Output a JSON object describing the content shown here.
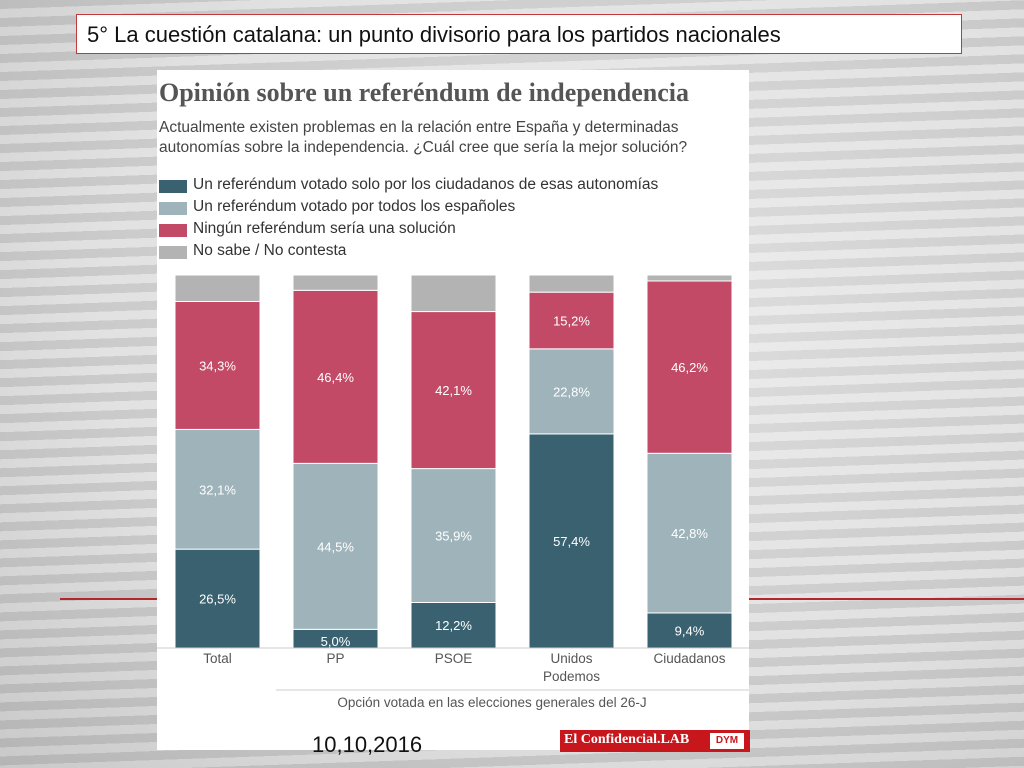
{
  "slide": {
    "title": "5° La cuestión catalana: un punto divisorio para los partidos nacionales",
    "date": "10,10,2016"
  },
  "logo": {
    "name": "El Confidencial.LAB",
    "badge": "DYM"
  },
  "colors": {
    "local_referendum": "#3a6170",
    "national_referendum": "#9fb3bb",
    "no_referendum": "#c24a66",
    "dont_know": "#b3b3b3",
    "accent_red": "#c0393b"
  },
  "chart_data": {
    "type": "bar",
    "stacked": true,
    "normalized_100": true,
    "title": "Opinión sobre un referéndum de independencia",
    "subtitle": "Actualmente existen problemas en la relación entre España y determinadas autonomías sobre la independencia. ¿Cuál cree que sería la mejor solución?",
    "categories": [
      "Total",
      "PP",
      "PSOE",
      "Unidos Podemos",
      "Ciudadanos"
    ],
    "category_lines": [
      [
        "Total"
      ],
      [
        "PP"
      ],
      [
        "PSOE"
      ],
      [
        "Unidos",
        "Podemos"
      ],
      [
        "Ciudadanos"
      ]
    ],
    "xlabel": "Opción votada en las elecciones generales del 26-J",
    "ylim": [
      0,
      100
    ],
    "series": [
      {
        "name": "Un referéndum votado solo por los ciudadanos de esas autonomías",
        "color_key": "local_referendum",
        "values": [
          26.5,
          5.0,
          12.2,
          57.4,
          9.4
        ],
        "labels": [
          "26,5%",
          "5,0%",
          "12,2%",
          "57,4%",
          "9,4%"
        ]
      },
      {
        "name": "Un referéndum votado por todos los españoles",
        "color_key": "national_referendum",
        "values": [
          32.1,
          44.5,
          35.9,
          22.8,
          42.8
        ],
        "labels": [
          "32,1%",
          "44,5%",
          "35,9%",
          "22,8%",
          "42,8%"
        ]
      },
      {
        "name": "Ningún referéndum sería una solución",
        "color_key": "no_referendum",
        "values": [
          34.3,
          46.4,
          42.1,
          15.2,
          46.2
        ],
        "labels": [
          "34,3%",
          "46,4%",
          "42,1%",
          "15,2%",
          "46,2%"
        ]
      },
      {
        "name": "No sabe / No contesta",
        "color_key": "dont_know",
        "values": [
          7.1,
          4.1,
          9.8,
          4.6,
          1.6
        ],
        "labels": [
          "",
          "",
          "",
          "",
          ""
        ]
      }
    ]
  }
}
